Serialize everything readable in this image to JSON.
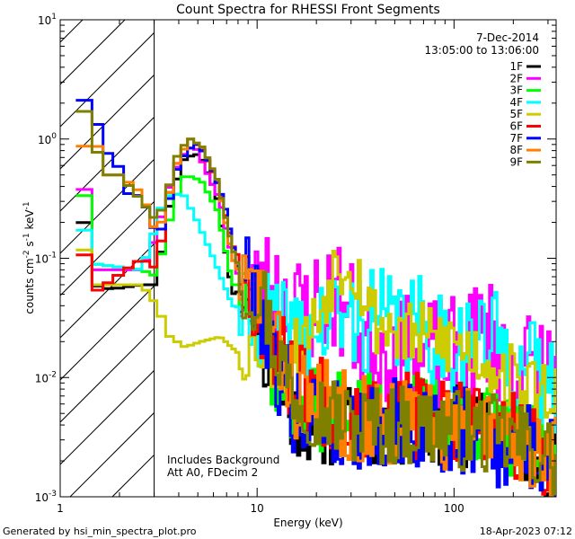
{
  "chart_data": {
    "type": "line",
    "step": true,
    "title": "Count Spectra for RHESSI Front Segments",
    "xlabel": "Energy (keV)",
    "ylabel_parts": {
      "pre": "counts cm",
      "e1": "-2",
      "mid1": " s",
      "e2": "-1",
      "mid2": " keV",
      "e3": "-1"
    },
    "xscale": "log",
    "yscale": "log",
    "xlim": [
      1,
      330
    ],
    "ylim": [
      0.001,
      10
    ],
    "x_ticks": [
      {
        "v": 1,
        "label": "1"
      },
      {
        "v": 10,
        "label": "10"
      },
      {
        "v": 100,
        "label": "100"
      }
    ],
    "y_ticks": [
      {
        "v": 0.001,
        "base": "10",
        "exp": "-3"
      },
      {
        "v": 0.01,
        "base": "10",
        "exp": "-2"
      },
      {
        "v": 0.1,
        "base": "10",
        "exp": "-1"
      },
      {
        "v": 1,
        "base": "10",
        "exp": "0"
      },
      {
        "v": 10,
        "base": "10",
        "exp": "1"
      }
    ],
    "shaded_region": {
      "x_range": [
        1,
        3
      ],
      "style": "diagonal hatch"
    },
    "date": "7-Dec-2014",
    "time_range": "13:05:00 to 13:06:00",
    "legend_position": "top-right",
    "annotations": [
      "Includes Background",
      "Att A0, FDecim 2"
    ],
    "series": [
      {
        "name": "1F",
        "color": "#000000",
        "seed": 11,
        "noise": 0.35,
        "anchors": [
          [
            1.2,
            0.24
          ],
          [
            1.3,
            0.24
          ],
          [
            1.45,
            0.06
          ],
          [
            1.8,
            0.055
          ],
          [
            2.6,
            0.06
          ],
          [
            3.1,
            0.06
          ],
          [
            3.3,
            0.13
          ],
          [
            3.7,
            0.35
          ],
          [
            4.3,
            0.7
          ],
          [
            5.1,
            0.75
          ],
          [
            6.2,
            0.35
          ],
          [
            7.5,
            0.05
          ],
          [
            9.5,
            0.06
          ],
          [
            11,
            0.015
          ],
          [
            15,
            0.005
          ],
          [
            20,
            0.004
          ],
          [
            40,
            0.004
          ],
          [
            100,
            0.004
          ],
          [
            200,
            0.003
          ],
          [
            330,
            0.002
          ]
        ]
      },
      {
        "name": "2F",
        "color": "#ff00ff",
        "seed": 23,
        "noise": 0.5,
        "anchors": [
          [
            1.2,
            0.48
          ],
          [
            1.3,
            0.48
          ],
          [
            1.45,
            0.08
          ],
          [
            2.6,
            0.08
          ],
          [
            3.1,
            0.16
          ],
          [
            3.5,
            0.35
          ],
          [
            4.1,
            0.7
          ],
          [
            4.8,
            0.9
          ],
          [
            5.8,
            0.45
          ],
          [
            6.5,
            0.3
          ],
          [
            7.2,
            0.13
          ],
          [
            8.5,
            0.05
          ],
          [
            12,
            0.06
          ],
          [
            16,
            0.035
          ],
          [
            25,
            0.05
          ],
          [
            35,
            0.02
          ],
          [
            60,
            0.015
          ],
          [
            100,
            0.015
          ],
          [
            150,
            0.025
          ],
          [
            200,
            0.012
          ],
          [
            330,
            0.012
          ]
        ]
      },
      {
        "name": "3F",
        "color": "#00ff00",
        "seed": 37,
        "noise": 0.35,
        "anchors": [
          [
            1.2,
            0.41
          ],
          [
            1.3,
            0.41
          ],
          [
            1.45,
            0.09
          ],
          [
            2.6,
            0.08
          ],
          [
            3.1,
            0.07
          ],
          [
            3.3,
            0.12
          ],
          [
            3.8,
            0.3
          ],
          [
            4.3,
            0.5
          ],
          [
            5.2,
            0.45
          ],
          [
            6.3,
            0.25
          ],
          [
            7.5,
            0.06
          ],
          [
            10,
            0.06
          ],
          [
            11,
            0.015
          ],
          [
            15,
            0.006
          ],
          [
            25,
            0.005
          ],
          [
            60,
            0.005
          ],
          [
            150,
            0.004
          ],
          [
            330,
            0.002
          ]
        ]
      },
      {
        "name": "4F",
        "color": "#00ffff",
        "seed": 41,
        "noise": 0.45,
        "anchors": [
          [
            1.2,
            0.19
          ],
          [
            1.3,
            0.19
          ],
          [
            1.45,
            0.09
          ],
          [
            2.6,
            0.08
          ],
          [
            3.1,
            0.2
          ],
          [
            3.4,
            0.33
          ],
          [
            4.2,
            0.35
          ],
          [
            5,
            0.2
          ],
          [
            6,
            0.1
          ],
          [
            7.5,
            0.04
          ],
          [
            10,
            0.035
          ],
          [
            15,
            0.02
          ],
          [
            25,
            0.03
          ],
          [
            40,
            0.03
          ],
          [
            70,
            0.025
          ],
          [
            110,
            0.02
          ],
          [
            160,
            0.02
          ],
          [
            230,
            0.012
          ],
          [
            330,
            0.008
          ]
        ]
      },
      {
        "name": "5F",
        "color": "#cccc00",
        "seed": 53,
        "noise": 0.3,
        "anchors": [
          [
            1.2,
            0.13
          ],
          [
            1.3,
            0.13
          ],
          [
            1.45,
            0.06
          ],
          [
            2.6,
            0.06
          ],
          [
            3.1,
            0.04
          ],
          [
            3.6,
            0.022
          ],
          [
            4.3,
            0.018
          ],
          [
            5.2,
            0.02
          ],
          [
            6.5,
            0.022
          ],
          [
            8,
            0.016
          ],
          [
            10,
            0.02
          ],
          [
            14,
            0.013
          ],
          [
            20,
            0.03
          ],
          [
            25,
            0.09
          ],
          [
            30,
            0.1
          ],
          [
            34,
            0.06
          ],
          [
            40,
            0.03
          ],
          [
            60,
            0.022
          ],
          [
            100,
            0.02
          ],
          [
            160,
            0.013
          ],
          [
            230,
            0.008
          ],
          [
            330,
            0.008
          ]
        ]
      },
      {
        "name": "6F",
        "color": "#ff0000",
        "seed": 67,
        "noise": 0.4,
        "anchors": [
          [
            1.2,
            0.12
          ],
          [
            1.3,
            0.12
          ],
          [
            1.45,
            0.05
          ],
          [
            2.6,
            0.1
          ],
          [
            3.1,
            0.08
          ],
          [
            3.5,
            0.3
          ],
          [
            4,
            0.7
          ],
          [
            4.6,
            1.0
          ],
          [
            5.3,
            0.8
          ],
          [
            6.4,
            0.4
          ],
          [
            7.5,
            0.13
          ],
          [
            9,
            0.07
          ],
          [
            11,
            0.03
          ],
          [
            14,
            0.012
          ],
          [
            20,
            0.007
          ],
          [
            40,
            0.005
          ],
          [
            100,
            0.004
          ],
          [
            200,
            0.003
          ],
          [
            330,
            0.002
          ]
        ]
      },
      {
        "name": "7F",
        "color": "#0000ff",
        "seed": 79,
        "noise": 0.4,
        "anchors": [
          [
            1.2,
            2.1
          ],
          [
            1.3,
            2.1
          ],
          [
            1.45,
            2.2
          ],
          [
            1.65,
            0.8
          ],
          [
            1.9,
            0.7
          ],
          [
            2.2,
            0.35
          ],
          [
            2.6,
            0.33
          ],
          [
            3.1,
            0.15
          ],
          [
            3.4,
            0.2
          ],
          [
            3.8,
            0.5
          ],
          [
            4.4,
            0.8
          ],
          [
            5,
            0.92
          ],
          [
            5.8,
            0.6
          ],
          [
            6.8,
            0.3
          ],
          [
            8,
            0.08
          ],
          [
            10,
            0.06
          ],
          [
            12,
            0.015
          ],
          [
            16,
            0.005
          ],
          [
            25,
            0.004
          ],
          [
            60,
            0.004
          ],
          [
            150,
            0.003
          ],
          [
            330,
            0.002
          ]
        ]
      },
      {
        "name": "8F",
        "color": "#ff8000",
        "seed": 83,
        "noise": 0.4,
        "anchors": [
          [
            1.2,
            0.8
          ],
          [
            1.3,
            0.8
          ],
          [
            1.45,
            1.5
          ],
          [
            1.65,
            0.5
          ],
          [
            2,
            0.5
          ],
          [
            2.6,
            0.35
          ],
          [
            3.1,
            0.15
          ],
          [
            3.5,
            0.3
          ],
          [
            4,
            0.7
          ],
          [
            4.6,
            1.0
          ],
          [
            5.3,
            0.85
          ],
          [
            6.3,
            0.45
          ],
          [
            7.5,
            0.1
          ],
          [
            9,
            0.05
          ],
          [
            10.5,
            0.06
          ],
          [
            12,
            0.02
          ],
          [
            16,
            0.007
          ],
          [
            30,
            0.005
          ],
          [
            80,
            0.004
          ],
          [
            200,
            0.003
          ],
          [
            330,
            0.002
          ]
        ]
      },
      {
        "name": "9F",
        "color": "#808000",
        "seed": 97,
        "noise": 0.35,
        "anchors": [
          [
            1.2,
            1.8
          ],
          [
            1.3,
            1.8
          ],
          [
            1.45,
            1.2
          ],
          [
            1.65,
            0.5
          ],
          [
            2,
            0.5
          ],
          [
            2.6,
            0.3
          ],
          [
            3.1,
            0.2
          ],
          [
            3.5,
            0.35
          ],
          [
            4,
            0.8
          ],
          [
            4.6,
            1.0
          ],
          [
            5.3,
            0.85
          ],
          [
            6.3,
            0.45
          ],
          [
            7.5,
            0.12
          ],
          [
            9,
            0.05
          ],
          [
            10.5,
            0.06
          ],
          [
            12,
            0.02
          ],
          [
            16,
            0.007
          ],
          [
            30,
            0.004
          ],
          [
            80,
            0.004
          ],
          [
            200,
            0.003
          ],
          [
            330,
            0.002
          ]
        ]
      }
    ]
  },
  "footer": {
    "generated_by": "Generated by hsi_min_spectra_plot.pro",
    "timestamp": "18-Apr-2023 07:12"
  }
}
